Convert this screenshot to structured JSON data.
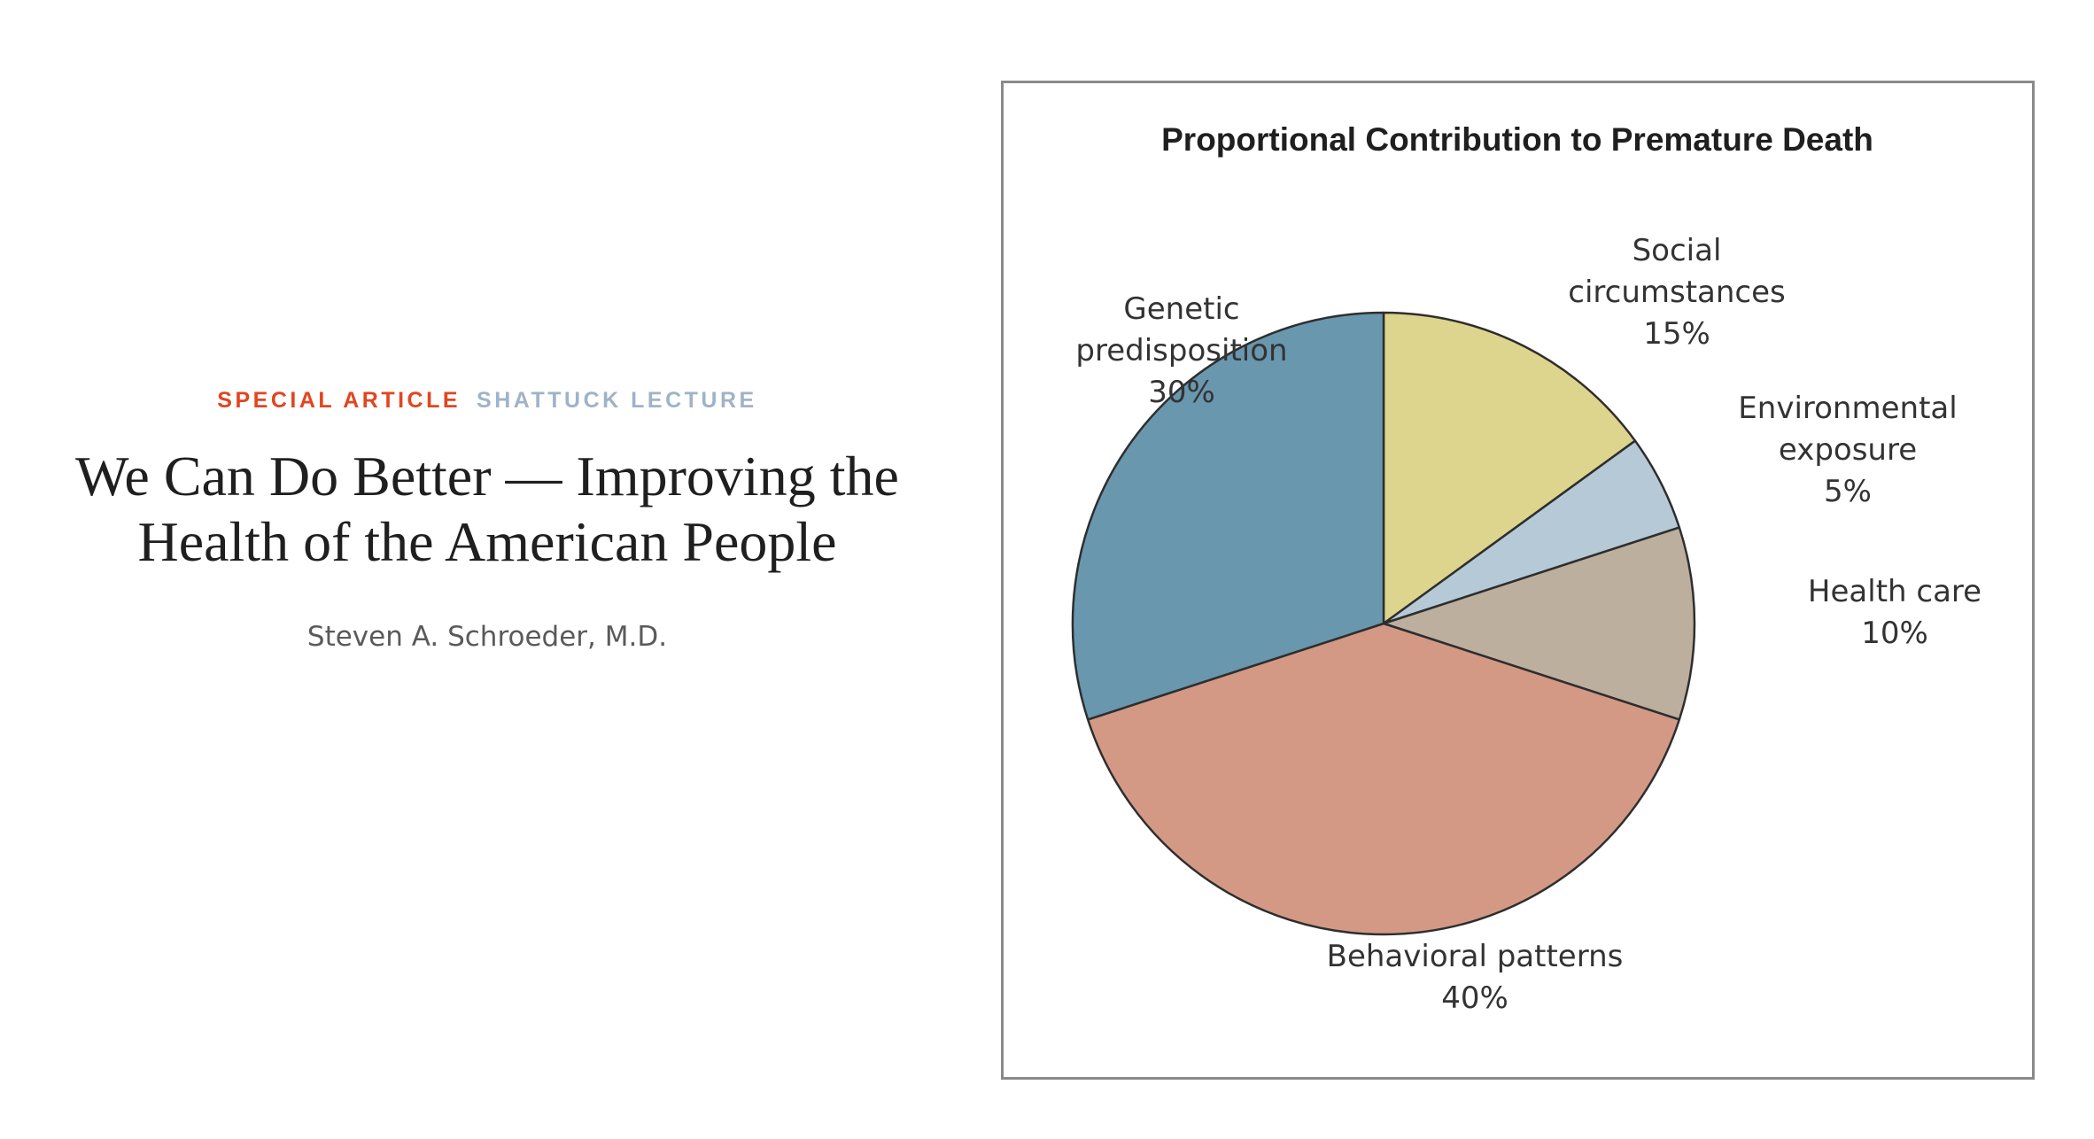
{
  "article": {
    "section_label": "SPECIAL ARTICLE",
    "series_label": "SHATTUCK LECTURE",
    "title_line1": "We Can Do Better — Improving the",
    "title_line2": "Health of the American People",
    "author": "Steven A. Schroeder, M.D."
  },
  "colors": {
    "section_label": "#e2451f",
    "series_label": "#9fb3c8",
    "frame_border": "#8a8a8a",
    "slice_outline": "#2e2e2e"
  },
  "chart_data": {
    "type": "pie",
    "title": "Proportional Contribution to Premature Death",
    "start_angle_deg": 0,
    "direction": "clockwise",
    "slices": [
      {
        "key": "social",
        "label_lines": [
          "Social",
          "circumstances"
        ],
        "value_label": "15%",
        "value": 15,
        "color": "#ddd48d"
      },
      {
        "key": "environmental",
        "label_lines": [
          "Environmental",
          "exposure"
        ],
        "value_label": "5%",
        "value": 5,
        "color": "#b5cad6"
      },
      {
        "key": "healthcare",
        "label_lines": [
          "Health care"
        ],
        "value_label": "10%",
        "value": 10,
        "color": "#bcaf9d"
      },
      {
        "key": "behavioral",
        "label_lines": [
          "Behavioral patterns"
        ],
        "value_label": "40%",
        "value": 40,
        "color": "#d39985"
      },
      {
        "key": "genetic",
        "label_lines": [
          "Genetic",
          "predisposition"
        ],
        "value_label": "30%",
        "value": 30,
        "color": "#6997ae"
      }
    ]
  }
}
